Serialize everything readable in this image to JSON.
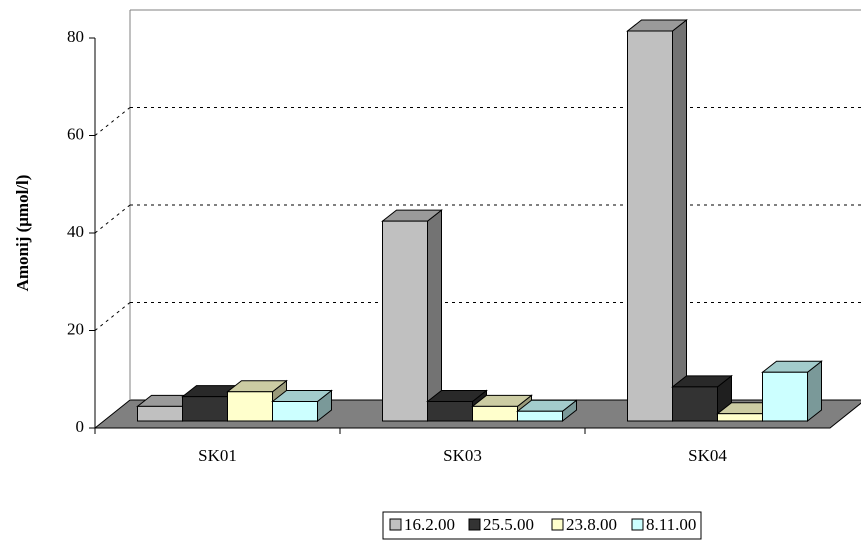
{
  "chart_data": {
    "type": "bar3d",
    "y_axis_label": "Amonij (μmol/l)",
    "categories": [
      "SK01",
      "SK03",
      "SK04"
    ],
    "series": [
      {
        "name": "16.2.00",
        "color": "#c0c0c0",
        "values": [
          3,
          41,
          80
        ]
      },
      {
        "name": "25.5.00",
        "color": "#333333",
        "values": [
          5,
          4,
          7
        ]
      },
      {
        "name": "23.8.00",
        "color": "#ffffcc",
        "values": [
          6,
          3,
          1.5
        ]
      },
      {
        "name": "8.11.00",
        "color": "#ccffff",
        "values": [
          4,
          2,
          10
        ]
      }
    ],
    "ylim": [
      0,
      80
    ],
    "yticks": [
      0,
      20,
      40,
      60,
      80
    ],
    "grid": true
  }
}
